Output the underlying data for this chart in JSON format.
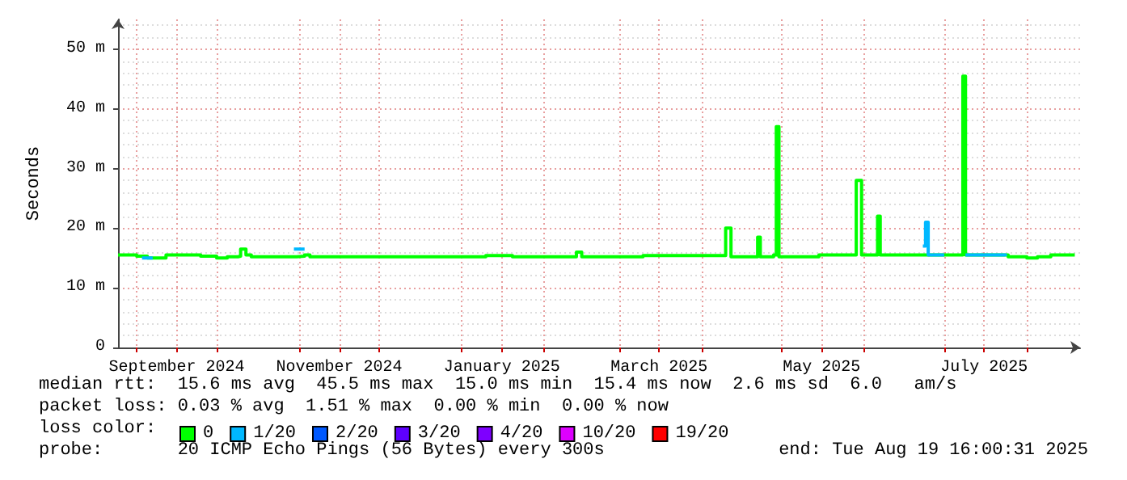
{
  "chart_data": {
    "type": "step",
    "ylabel": "Seconds",
    "legend_title": "loss color:",
    "legend": "bottom",
    "grid": true,
    "marker": "none",
    "xlim": [
      "2024-08-25",
      "2025-08-21"
    ],
    "xticks": [
      {
        "value": "2024-09-01",
        "label": null
      },
      {
        "value": "2024-09-16",
        "label": "September 2024"
      },
      {
        "value": "2024-10-01",
        "label": null
      },
      {
        "value": "2024-11-01",
        "label": null
      },
      {
        "value": "2024-11-16",
        "label": "November 2024"
      },
      {
        "value": "2024-12-01",
        "label": null
      },
      {
        "value": "2025-01-01",
        "label": null
      },
      {
        "value": "2025-01-16",
        "label": "January 2025"
      },
      {
        "value": "2025-02-01",
        "label": null
      },
      {
        "value": "2025-03-01",
        "label": null
      },
      {
        "value": "2025-03-16",
        "label": "March 2025"
      },
      {
        "value": "2025-04-01",
        "label": null
      },
      {
        "value": "2025-05-01",
        "label": null
      },
      {
        "value": "2025-05-16",
        "label": "May 2025"
      },
      {
        "value": "2025-06-01",
        "label": null
      },
      {
        "value": "2025-07-01",
        "label": null
      },
      {
        "value": "2025-07-16",
        "label": "July 2025"
      },
      {
        "value": "2025-08-01",
        "label": null
      }
    ],
    "ylim": [
      0,
      55
    ],
    "yticks": [
      0,
      {
        "value": 10,
        "label": "10 m"
      },
      {
        "value": 20,
        "label": "20 m"
      },
      {
        "value": 30,
        "label": "30 m"
      },
      {
        "value": 40,
        "label": "40 m"
      },
      {
        "value": 50,
        "label": "50 m"
      }
    ],
    "series": [
      {
        "name": "0",
        "color": "#00ff00",
        "x": [
          "2024-08-25",
          "2024-09-01",
          "2024-09-05",
          "2024-09-10",
          "2024-09-12",
          "2024-09-20",
          "2024-09-25",
          "2024-10-01",
          "2024-10-05",
          "2024-10-09",
          "2024-10-10",
          "2024-10-12",
          "2024-10-14",
          "2024-10-20",
          "2024-10-31",
          "2024-11-03",
          "2024-11-05",
          "2024-11-20",
          "2024-12-15",
          "2025-01-05",
          "2025-01-10",
          "2025-01-20",
          "2025-02-10",
          "2025-02-13",
          "2025-02-15",
          "2025-03-01",
          "2025-03-10",
          "2025-03-25",
          "2025-04-09",
          "2025-04-10",
          "2025-04-12",
          "2025-04-21",
          "2025-04-22",
          "2025-04-23",
          "2025-04-28",
          "2025-04-29",
          "2025-04-30",
          "2025-05-15",
          "2025-05-28",
          "2025-05-29",
          "2025-05-31",
          "2025-06-05",
          "2025-06-06",
          "2025-06-07",
          "2025-06-20",
          "2025-07-07",
          "2025-07-08",
          "2025-07-09",
          "2025-07-25",
          "2025-08-01",
          "2025-08-05",
          "2025-08-10",
          "2025-08-19"
        ],
        "values": [
          15.5,
          15.3,
          15,
          15,
          15.5,
          15.5,
          15.3,
          15,
          15.2,
          15.3,
          16.5,
          15.5,
          15.2,
          15.2,
          15.3,
          15.5,
          15.2,
          15.2,
          15.2,
          15.2,
          15.4,
          15.2,
          15.2,
          16,
          15.2,
          15.2,
          15.4,
          15.4,
          15.4,
          20,
          15.2,
          15.2,
          18.5,
          15.2,
          15.5,
          37,
          15.2,
          15.5,
          15.5,
          28,
          15.5,
          15.5,
          22,
          15.5,
          15.5,
          15.5,
          45.5,
          15.5,
          15.2,
          15,
          15.2,
          15.5,
          15.5
        ]
      },
      {
        "name": "1/20",
        "color": "#00b8ff",
        "x": [
          "2024-09-03",
          "2024-09-06",
          "2024-09-07",
          "2024-10-30",
          "2024-11-02",
          "2024-11-03",
          "2025-06-23",
          "2025-06-24",
          "2025-06-25",
          "2025-06-30",
          "2025-07-01",
          "2025-07-09",
          "2025-07-24"
        ],
        "values": [
          15,
          15,
          null,
          16.5,
          16.5,
          null,
          17,
          21,
          15.5,
          15.5,
          null,
          15.5,
          15.3
        ]
      },
      {
        "name": "2/20",
        "color": "#0059ff"
      },
      {
        "name": "3/20",
        "color": "#5e00ff"
      },
      {
        "name": "4/20",
        "color": "#7e00ff"
      },
      {
        "name": "10/20",
        "color": "#dd00ff"
      },
      {
        "name": "19/20",
        "color": "#ff0000"
      }
    ],
    "annotations": [
      "median rtt:  15.6 ms avg  45.5 ms max  15.0 ms min  15.4 ms now  2.6 ms sd  6.0   am/s",
      "packet loss: 0.03 % avg  1.51 % max  0.00 % min  0.00 % now",
      "probe:       20 ICMP Echo Pings (56 Bytes) every 300s",
      "end: Tue Aug 19 16:00:31 2025"
    ]
  }
}
